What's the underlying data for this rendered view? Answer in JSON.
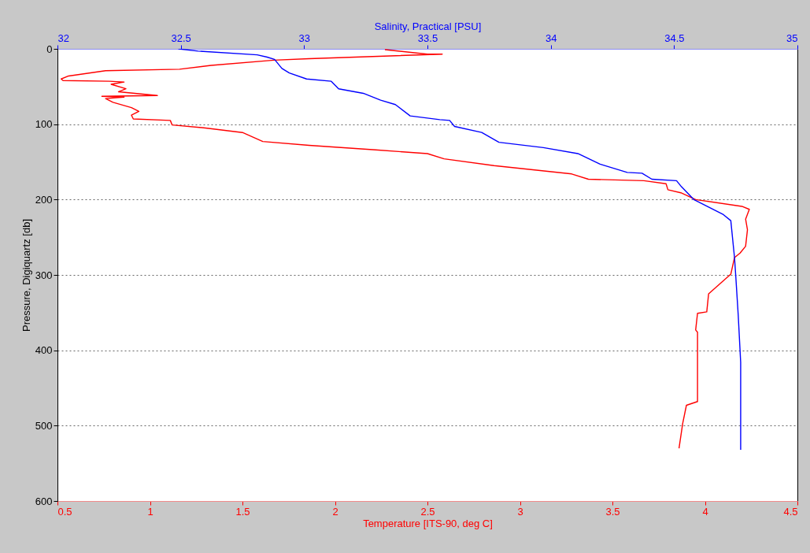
{
  "chart_data": {
    "type": "line",
    "xlabel": "Temperature [ITS-90, deg C]",
    "x2label": "Salinity, Practical [PSU]",
    "ylabel": "Pressure, Digiquartz [db]",
    "xlim": [
      0.5,
      4.5
    ],
    "xticks": [
      0.5,
      1,
      1.5,
      2,
      2.5,
      3,
      3.5,
      4,
      4.5
    ],
    "x2lim": [
      32,
      35
    ],
    "x2ticks": [
      32,
      32.5,
      33,
      33.5,
      34,
      34.5,
      35
    ],
    "ylim": [
      600,
      0
    ],
    "yticks": [
      0,
      100,
      200,
      300,
      400,
      500,
      600
    ],
    "grid": "y",
    "line_style": "solid",
    "series": [
      {
        "color": "#ff0000",
        "x": [
          2.27,
          2.5,
          2.58,
          1.86,
          1.67,
          1.33,
          1.16,
          0.76,
          0.56,
          0.52,
          0.53,
          0.78,
          0.86,
          0.79,
          0.87,
          0.83,
          1.04,
          0.74,
          0.86,
          0.76,
          0.8,
          0.9,
          0.94,
          0.9,
          0.91,
          1.11,
          1.12,
          1.3,
          1.5,
          1.61,
          1.86,
          2.22,
          2.5,
          2.59,
          2.86,
          3.28,
          3.37,
          3.67,
          3.79,
          3.8,
          3.87,
          3.95,
          4.2,
          4.24,
          4.22,
          4.23,
          4.22,
          4.19,
          4.16,
          4.14,
          4.02,
          4.01,
          3.96,
          3.95,
          3.96,
          3.96,
          3.96,
          3.9,
          3.88,
          3.86
        ],
        "values": [
          1,
          7,
          7,
          13,
          15,
          22,
          27,
          29,
          36,
          40,
          42,
          43,
          44,
          47,
          53,
          57,
          62,
          63,
          64,
          66,
          71,
          78,
          83,
          88,
          93,
          95,
          101,
          105,
          111,
          123,
          128,
          134,
          139,
          146,
          155,
          166,
          173,
          175,
          179,
          187,
          191,
          200,
          209,
          213,
          226,
          240,
          262,
          271,
          277,
          299,
          325,
          349,
          351,
          373,
          376,
          417,
          468,
          473,
          497,
          530
        ]
      },
      {
        "axis": "x2",
        "color": "#0000ff",
        "x": [
          32.49,
          32.57,
          32.81,
          32.85,
          32.88,
          32.91,
          32.94,
          33.01,
          33.11,
          33.14,
          33.24,
          33.31,
          33.37,
          33.43,
          33.55,
          33.59,
          33.61,
          33.72,
          33.79,
          33.97,
          34.11,
          34.2,
          34.31,
          34.37,
          34.41,
          34.51,
          34.53,
          34.58,
          34.7,
          34.73,
          34.745,
          34.75,
          34.76,
          34.77,
          34.77,
          34.77
        ],
        "values": [
          0,
          3,
          8,
          11,
          14,
          26,
          32,
          40,
          43,
          53,
          59,
          68,
          74,
          89,
          94,
          95,
          103,
          111,
          124,
          131,
          139,
          153,
          164,
          165,
          173,
          175,
          183,
          200,
          220,
          228,
          277,
          301,
          353,
          416,
          497,
          532
        ]
      }
    ]
  }
}
